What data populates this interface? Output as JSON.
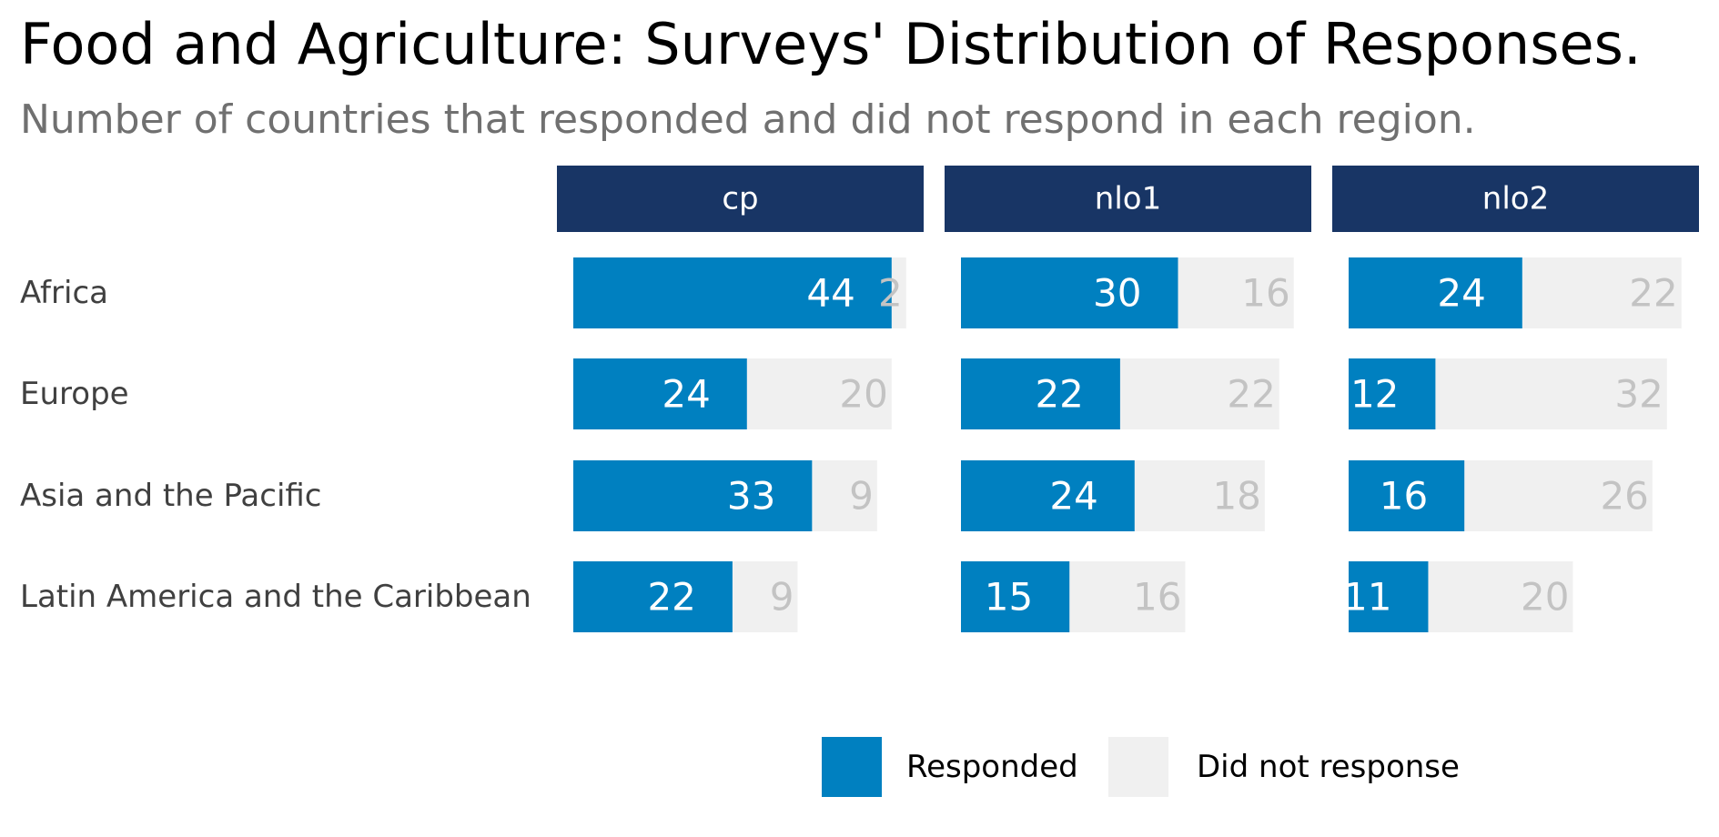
{
  "chart_data": {
    "type": "bar",
    "orientation": "horizontal",
    "stacked": true,
    "title": "Food and Agriculture: Surveys' Distribution of Responses.",
    "subtitle": "Number of countries that responded and did not respond in each region.",
    "categories": [
      "Africa",
      "Europe",
      "Asia and the Pacific",
      "Latin America and the Caribbean"
    ],
    "panels": [
      {
        "name": "cp",
        "series": [
          {
            "name": "Responded",
            "values": [
              44,
              24,
              33,
              22
            ]
          },
          {
            "name": "Did not response",
            "values": [
              2,
              20,
              9,
              9
            ]
          }
        ]
      },
      {
        "name": "nlo1",
        "series": [
          {
            "name": "Responded",
            "values": [
              30,
              22,
              24,
              15
            ]
          },
          {
            "name": "Did not response",
            "values": [
              16,
              22,
              18,
              16
            ]
          }
        ]
      },
      {
        "name": "nlo2",
        "series": [
          {
            "name": "Responded",
            "values": [
              24,
              12,
              16,
              11
            ]
          },
          {
            "name": "Did not response",
            "values": [
              22,
              32,
              26,
              20
            ]
          }
        ]
      }
    ],
    "xlim": [
      0,
      46
    ],
    "grid": false,
    "legend": {
      "position": "bottom",
      "entries": [
        {
          "label": "Responded",
          "color": "#0080c0"
        },
        {
          "label": "Did not response",
          "color": "#f0f0f0"
        }
      ]
    },
    "colors": {
      "responded": "#0080c0",
      "not_responded": "#f0f0f0",
      "strip": "#183565",
      "responded_label": "#ffffff",
      "not_responded_label": "#c3c3c3"
    }
  }
}
